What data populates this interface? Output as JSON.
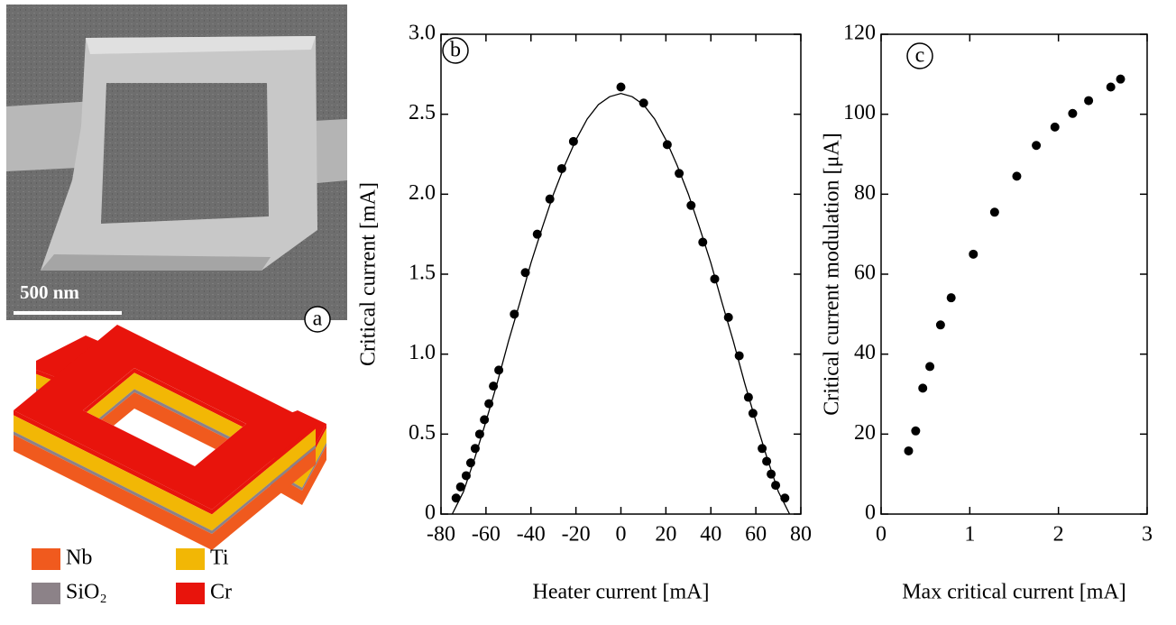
{
  "panel_a": {
    "label": "a",
    "scale_bar": "500 nm",
    "legend": [
      {
        "name": "Nb",
        "color": "#f05a1e"
      },
      {
        "name": "SiO₂",
        "color": "#8c8288"
      },
      {
        "name": "Ti",
        "color": "#f2b705"
      },
      {
        "name": "Cr",
        "color": "#e8140c"
      }
    ]
  },
  "chart_data": [
    {
      "type": "scatter",
      "label": "b",
      "x_label": "Heater current [mA]",
      "y_label": "Critical current [mA]",
      "xlim": [
        -80,
        80
      ],
      "xticks": [
        -80,
        -60,
        -40,
        -20,
        0,
        20,
        40,
        60,
        80
      ],
      "ylim": [
        0,
        3
      ],
      "yticks": [
        0,
        0.5,
        {
          "value": 1,
          "label": "1.0"
        },
        1.5,
        {
          "value": 2,
          "label": "2.0"
        },
        2.5,
        {
          "value": 3,
          "label": "3.0"
        }
      ],
      "series": [
        {
          "type": "line",
          "color": "#000000",
          "x": [
            -75,
            -70,
            -65,
            -60,
            -55,
            -50,
            -45,
            -40,
            -35,
            -30,
            -25,
            -20,
            -15,
            -10,
            -5,
            0,
            5,
            10,
            15,
            20,
            25,
            30,
            35,
            40,
            45,
            50,
            55,
            60,
            65,
            70,
            75
          ],
          "values": [
            0,
            0.14,
            0.35,
            0.58,
            0.82,
            1.08,
            1.32,
            1.57,
            1.79,
            2.0,
            2.18,
            2.34,
            2.47,
            2.56,
            2.61,
            2.63,
            2.61,
            2.56,
            2.47,
            2.34,
            2.18,
            2.0,
            1.79,
            1.57,
            1.32,
            1.08,
            0.82,
            0.58,
            0.35,
            0.14,
            0
          ]
        },
        {
          "type": "scatter",
          "color": "#000000",
          "x": [
            -73.3,
            -71.3,
            -68.8,
            -66.8,
            -64.8,
            -62.8,
            -60.7,
            -58.7,
            -56.7,
            -54.3,
            -47.4,
            -42.5,
            -37.2,
            -31.6,
            -26.3,
            -21.1,
            0,
            10.1,
            20.6,
            25.9,
            31.2,
            36.4,
            41.7,
            47.8,
            52.6,
            56.7,
            58.7,
            62.8,
            64.8,
            66.8,
            68.8,
            72.9
          ],
          "values": [
            0.1,
            0.17,
            0.24,
            0.32,
            0.41,
            0.5,
            0.59,
            0.69,
            0.8,
            0.9,
            1.25,
            1.51,
            1.75,
            1.97,
            2.16,
            2.33,
            2.67,
            2.57,
            2.31,
            2.13,
            1.93,
            1.7,
            1.47,
            1.23,
            0.99,
            0.73,
            0.63,
            0.41,
            0.33,
            0.25,
            0.18,
            0.1
          ]
        }
      ]
    },
    {
      "type": "scatter",
      "label": "c",
      "x_label": "Max critical current [mA]",
      "y_label": "Critical current modulation [μA]",
      "xlim": [
        0,
        3
      ],
      "xticks": [
        0,
        1,
        2,
        3
      ],
      "ylim": [
        0,
        120
      ],
      "yticks": [
        0,
        20,
        40,
        60,
        80,
        100,
        120
      ],
      "series": [
        {
          "type": "scatter",
          "color": "#000000",
          "x": [
            0.31,
            0.39,
            0.47,
            0.55,
            0.67,
            0.79,
            1.04,
            1.28,
            1.53,
            1.75,
            1.96,
            2.16,
            2.34,
            2.59,
            2.7
          ],
          "values": [
            15.8,
            20.8,
            31.5,
            36.9,
            47.3,
            54.1,
            65.0,
            75.5,
            84.5,
            92.2,
            96.8,
            100.2,
            103.4,
            106.8,
            108.8
          ]
        }
      ]
    }
  ]
}
